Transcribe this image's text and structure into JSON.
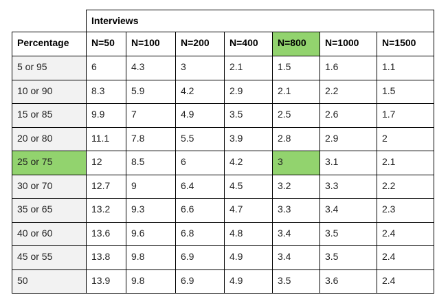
{
  "table": {
    "group_header": "Interviews",
    "columns": [
      "Percentage",
      "N=50",
      "N=100",
      "N=200",
      "N=400",
      "N=800",
      "N=1000",
      "N=1500"
    ],
    "rows": [
      [
        "5 or 95",
        6,
        4.3,
        3,
        2.1,
        1.5,
        1.6,
        1.1
      ],
      [
        "10 or 90",
        8.3,
        5.9,
        4.2,
        2.9,
        2.1,
        2.2,
        1.5
      ],
      [
        "15 or 85",
        9.9,
        7,
        4.9,
        3.5,
        2.5,
        2.6,
        1.7
      ],
      [
        "20 or 80",
        11.1,
        7.8,
        5.5,
        3.9,
        2.8,
        2.9,
        2
      ],
      [
        "25 or 75",
        12,
        8.5,
        6,
        4.2,
        3,
        3.1,
        2.1
      ],
      [
        "30 or 70",
        12.7,
        9,
        6.4,
        4.5,
        3.2,
        3.3,
        2.2
      ],
      [
        "35 or 65",
        13.2,
        9.3,
        6.6,
        4.7,
        3.3,
        3.4,
        2.3
      ],
      [
        "40 or 60",
        13.6,
        9.6,
        6.8,
        4.8,
        3.4,
        3.5,
        2.4
      ],
      [
        "45 or 55",
        13.8,
        9.8,
        6.9,
        4.9,
        3.4,
        3.5,
        2.4
      ],
      [
        "50",
        13.9,
        9.8,
        6.9,
        4.9,
        3.5,
        3.6,
        2.4
      ]
    ]
  }
}
